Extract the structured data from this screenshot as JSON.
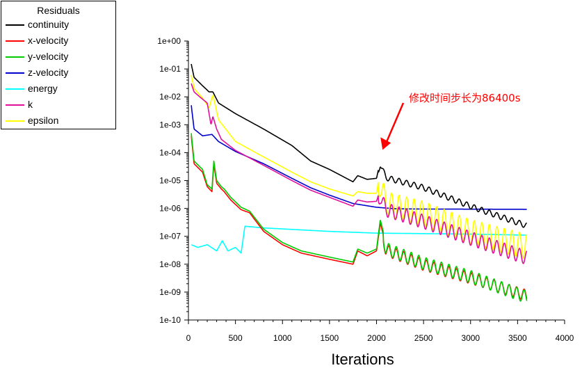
{
  "chart_data": {
    "type": "line",
    "title": "",
    "xlabel": "Iterations",
    "ylabel": "",
    "xlim": [
      0,
      4000
    ],
    "ylim_log10": [
      -10,
      0
    ],
    "x_ticks": [
      0,
      500,
      1000,
      1500,
      2000,
      2500,
      3000,
      3500,
      4000
    ],
    "x_tick_labels": [
      "0",
      "500",
      "1000",
      "1500",
      "2000",
      "2500",
      "3000",
      "3500",
      "4000"
    ],
    "y_tick_labels": [
      "1e+00",
      "1e-01",
      "1e-02",
      "1e-03",
      "1e-04",
      "1e-05",
      "1e-06",
      "1e-07",
      "1e-08",
      "1e-09",
      "1e-10"
    ],
    "legend_title": "Residuals",
    "legend_position": "top-left",
    "annotation": {
      "text": "修改时间步长为86400s",
      "target_x": 2020,
      "target_value": 0.0001,
      "arrow_color": "#ff0000"
    },
    "series": [
      {
        "name": "continuity",
        "color": "#000000",
        "trend": [
          [
            30,
            0.15
          ],
          [
            60,
            0.05
          ],
          [
            150,
            0.025
          ],
          [
            220,
            0.015
          ],
          [
            260,
            0.015
          ],
          [
            320,
            0.006
          ],
          [
            500,
            0.0025
          ],
          [
            800,
            0.0007
          ],
          [
            1100,
            0.00018
          ],
          [
            1300,
            5e-05
          ],
          [
            1500,
            2.5e-05
          ],
          [
            1750,
            9e-06
          ],
          [
            1800,
            1.5e-05
          ],
          [
            1900,
            1.1e-05
          ],
          [
            2000,
            1.2e-05
          ],
          [
            2040,
            5e-05
          ],
          [
            2100,
            1.6e-05
          ],
          [
            2500,
            7e-06
          ],
          [
            3000,
            1.5e-06
          ],
          [
            3600,
            3e-07
          ]
        ],
        "oscillation": {
          "start": 2000,
          "period": 80,
          "max_depth": 0.2
        }
      },
      {
        "name": "x-velocity",
        "color": "#ff0000",
        "trend": [
          [
            30,
            0.0004
          ],
          [
            60,
            4e-05
          ],
          [
            150,
            2e-05
          ],
          [
            200,
            6e-06
          ],
          [
            250,
            4e-06
          ],
          [
            270,
            4e-05
          ],
          [
            300,
            8e-06
          ],
          [
            350,
            5e-06
          ],
          [
            380,
            4e-06
          ],
          [
            450,
            2e-06
          ],
          [
            560,
            9e-07
          ],
          [
            650,
            7e-07
          ],
          [
            800,
            1.5e-07
          ],
          [
            1000,
            5e-08
          ],
          [
            1200,
            2.5e-08
          ],
          [
            1500,
            1.5e-08
          ],
          [
            1750,
            1e-08
          ],
          [
            1800,
            3e-08
          ],
          [
            1900,
            2e-08
          ],
          [
            2000,
            3e-08
          ],
          [
            2040,
            3e-07
          ],
          [
            2100,
            5e-08
          ],
          [
            2500,
            1.5e-08
          ],
          [
            3000,
            5e-09
          ],
          [
            3600,
            1.2e-09
          ]
        ],
        "oscillation": {
          "start": 2050,
          "period": 80,
          "max_depth": 0.4
        }
      },
      {
        "name": "y-velocity",
        "color": "#00cc00",
        "trend": [
          [
            30,
            0.0005
          ],
          [
            60,
            5e-05
          ],
          [
            150,
            2.5e-05
          ],
          [
            200,
            7e-06
          ],
          [
            250,
            5e-06
          ],
          [
            270,
            5e-05
          ],
          [
            300,
            1e-05
          ],
          [
            350,
            6e-06
          ],
          [
            380,
            5e-06
          ],
          [
            450,
            2.5e-06
          ],
          [
            560,
            1.1e-06
          ],
          [
            650,
            8e-07
          ],
          [
            800,
            1.8e-07
          ],
          [
            1000,
            6e-08
          ],
          [
            1200,
            3e-08
          ],
          [
            1500,
            1.8e-08
          ],
          [
            1750,
            1.2e-08
          ],
          [
            1800,
            3.5e-08
          ],
          [
            1900,
            2.5e-08
          ],
          [
            2000,
            3.5e-08
          ],
          [
            2040,
            4e-07
          ],
          [
            2100,
            6e-08
          ],
          [
            2500,
            1.8e-08
          ],
          [
            3000,
            6e-09
          ],
          [
            3600,
            1.1e-09
          ]
        ],
        "oscillation": {
          "start": 2050,
          "period": 80,
          "max_depth": 0.45
        }
      },
      {
        "name": "z-velocity",
        "color": "#0000cc",
        "trend": [
          [
            30,
            0.005
          ],
          [
            60,
            0.0007
          ],
          [
            150,
            0.0004
          ],
          [
            250,
            0.00045
          ],
          [
            320,
            0.00025
          ],
          [
            500,
            0.00011
          ],
          [
            800,
            4e-05
          ],
          [
            1100,
            1.2e-05
          ],
          [
            1300,
            5.5e-06
          ],
          [
            1500,
            3e-06
          ],
          [
            1750,
            1.5e-06
          ],
          [
            2000,
            1.1e-06
          ],
          [
            2200,
            9.7e-07
          ],
          [
            2500,
            9.5e-07
          ],
          [
            3000,
            9.4e-07
          ],
          [
            3600,
            9.3e-07
          ]
        ],
        "oscillation": null
      },
      {
        "name": "energy",
        "color": "#00ffff",
        "trend": [
          [
            30,
            5e-08
          ],
          [
            100,
            4e-08
          ],
          [
            200,
            5e-08
          ],
          [
            300,
            3e-08
          ],
          [
            360,
            7e-08
          ],
          [
            420,
            3e-08
          ],
          [
            500,
            4e-08
          ],
          [
            560,
            2.5e-08
          ],
          [
            600,
            2.3e-07
          ],
          [
            800,
            2e-07
          ],
          [
            1500,
            1.5e-07
          ],
          [
            2000,
            1.3e-07
          ],
          [
            3000,
            1.2e-07
          ],
          [
            3600,
            1.1e-07
          ]
        ],
        "oscillation": null
      },
      {
        "name": "k",
        "color": "#e0109a",
        "trend": [
          [
            30,
            0.03
          ],
          [
            60,
            0.015
          ],
          [
            120,
            0.01
          ],
          [
            200,
            0.006
          ],
          [
            240,
            0.001
          ],
          [
            260,
            0.002
          ],
          [
            300,
            0.0007
          ],
          [
            350,
            0.0003
          ],
          [
            500,
            0.00012
          ],
          [
            800,
            3.5e-05
          ],
          [
            1100,
            1e-05
          ],
          [
            1300,
            4.5e-06
          ],
          [
            1500,
            2.5e-06
          ],
          [
            1750,
            1.2e-06
          ],
          [
            1800,
            2e-06
          ],
          [
            1900,
            1.7e-06
          ],
          [
            2000,
            1.8e-06
          ],
          [
            2040,
            5e-06
          ],
          [
            2100,
            1.6e-06
          ],
          [
            2500,
            6e-07
          ],
          [
            3000,
            1.5e-07
          ],
          [
            3600,
            3e-08
          ]
        ],
        "oscillation": {
          "start": 2000,
          "period": 80,
          "max_depth": 0.5
        }
      },
      {
        "name": "epsilon",
        "color": "#ffff00",
        "trend": [
          [
            30,
            0.06
          ],
          [
            60,
            0.02
          ],
          [
            150,
            0.009
          ],
          [
            220,
            0.004
          ],
          [
            260,
            0.012
          ],
          [
            320,
            0.0015
          ],
          [
            500,
            0.00025
          ],
          [
            800,
            7e-05
          ],
          [
            1100,
            2e-05
          ],
          [
            1300,
            9e-06
          ],
          [
            1500,
            5e-06
          ],
          [
            1750,
            2.8e-06
          ],
          [
            1800,
            4e-06
          ],
          [
            1900,
            3.5e-06
          ],
          [
            2000,
            3.5e-06
          ],
          [
            2040,
            2.5e-05
          ],
          [
            2100,
            4e-06
          ],
          [
            2500,
            1.8e-06
          ],
          [
            3000,
            4e-07
          ],
          [
            3600,
            1.2e-07
          ]
        ],
        "oscillation": {
          "start": 2000,
          "period": 80,
          "max_depth": 0.9
        }
      }
    ]
  }
}
